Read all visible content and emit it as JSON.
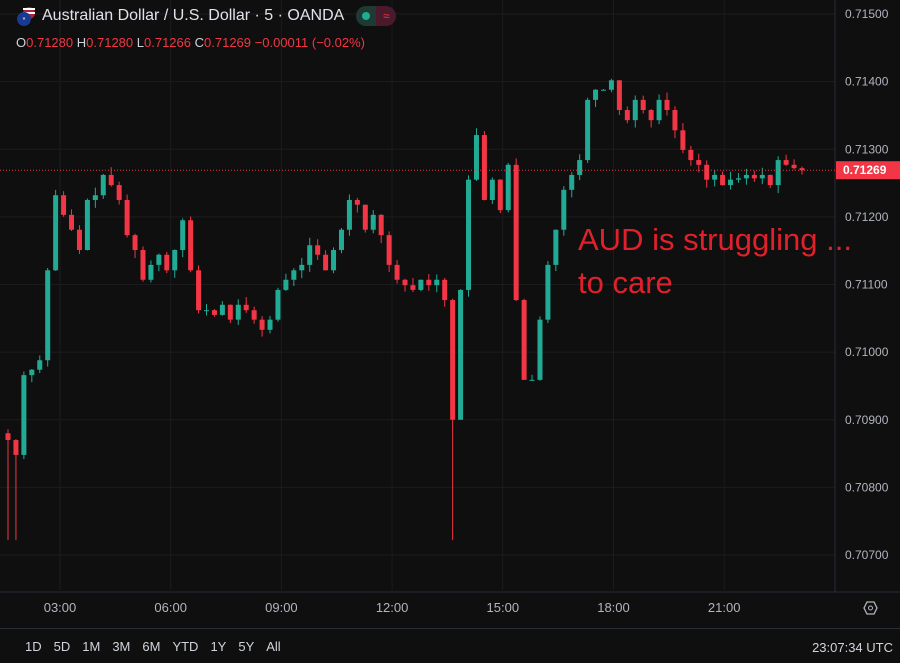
{
  "header": {
    "title": "Australian Dollar / U.S. Dollar · 5 · OANDA",
    "ohlc": {
      "o_label": "O",
      "o": "0.71280",
      "h_label": "H",
      "h": "0.71280",
      "l_label": "L",
      "l": "0.71266",
      "c_label": "C",
      "c": "0.71269",
      "change": "−0.00011 (−0.02%)"
    },
    "pill_icon": "wave-icon"
  },
  "annotation": {
    "line1": "AUD is struggling ...",
    "line2": "to care",
    "color": "#e0202a"
  },
  "range_buttons": [
    "1D",
    "5D",
    "1M",
    "3M",
    "6M",
    "YTD",
    "1Y",
    "5Y",
    "All"
  ],
  "clock": "23:07:34 UTC",
  "colors": {
    "up": "#22ab94",
    "down": "#f23645",
    "background": "#0f0f0f"
  },
  "chart_data": {
    "type": "candlestick",
    "symbol": "AUD/USD",
    "interval": "5",
    "ylim": [
      0.7065,
      0.7152
    ],
    "y_ticks": [
      "0.71500",
      "0.71400",
      "0.71300",
      "0.71200",
      "0.71100",
      "0.71000",
      "0.70900",
      "0.70800",
      "0.70700"
    ],
    "x_ticks": [
      "03:00",
      "06:00",
      "09:00",
      "12:00",
      "15:00",
      "18:00",
      "21:00"
    ],
    "last_price": "0.71269",
    "session_low": 0.70722,
    "closes": [
      0.7087,
      0.70848,
      0.70966,
      0.70974,
      0.70988,
      0.71121,
      0.71232,
      0.71203,
      0.71181,
      0.71151,
      0.71225,
      0.71232,
      0.71262,
      0.71247,
      0.71225,
      0.71173,
      0.71151,
      0.71107,
      0.71129,
      0.71144,
      0.71121,
      0.71151,
      0.71195,
      0.71121,
      0.71062,
      0.71062,
      0.71055,
      0.7107,
      0.71048,
      0.7107,
      0.71062,
      0.71048,
      0.71033,
      0.71048,
      0.71092,
      0.71107,
      0.71121,
      0.71129,
      0.71158,
      0.71144,
      0.71121,
      0.71151,
      0.71181,
      0.71225,
      0.71218,
      0.71181,
      0.71203,
      0.71173,
      0.71129,
      0.71107,
      0.71099,
      0.71092,
      0.71107,
      0.71099,
      0.71107,
      0.71077,
      0.709,
      0.71092,
      0.71255,
      0.71321,
      0.71225,
      0.71255,
      0.7121,
      0.71277,
      0.71077,
      0.70959,
      0.70959,
      0.71048,
      0.71129,
      0.71181,
      0.7124,
      0.71262,
      0.71284,
      0.71373,
      0.71388,
      0.71388,
      0.71402,
      0.71358,
      0.71343,
      0.71373,
      0.71358,
      0.71343,
      0.71373,
      0.71358,
      0.71328,
      0.71299,
      0.71284,
      0.71277,
      0.71255,
      0.71262,
      0.71247,
      0.71255,
      0.71257,
      0.71262,
      0.71257,
      0.71262,
      0.71247,
      0.71284,
      0.71277,
      0.71272,
      0.71269
    ]
  }
}
